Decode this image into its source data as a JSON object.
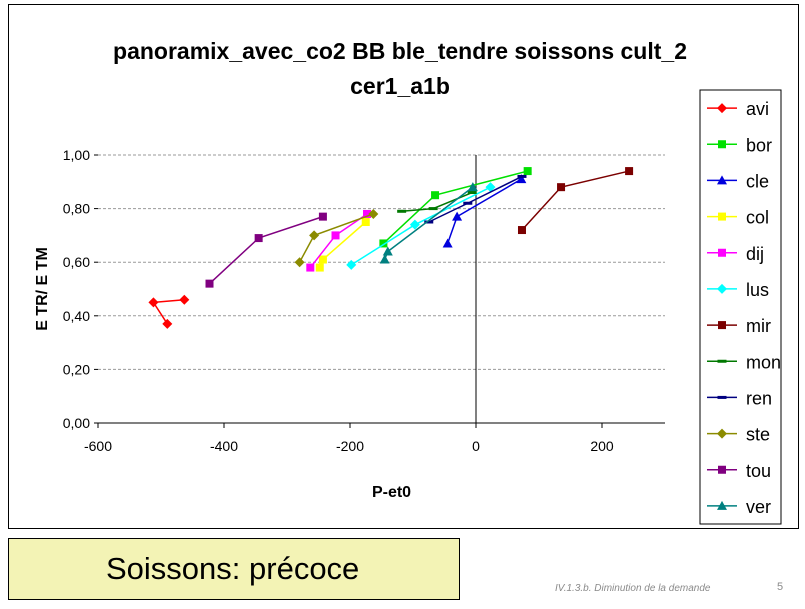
{
  "chart_data": {
    "type": "scatter",
    "title_lines": [
      "panoramix_avec_co2 BB ble_tendre soissons cult_2",
      "cer1_a1b"
    ],
    "xlabel": "P-et0",
    "ylabel": "E TR/ E TM",
    "xlim": [
      -600,
      300
    ],
    "ylim": [
      0,
      1.0
    ],
    "x_ticks": [
      "-600",
      "-400",
      "-200",
      "0",
      "200"
    ],
    "y_ticks": [
      "0,00",
      "0,20",
      "0,40",
      "0,60",
      "0,80",
      "1,00"
    ],
    "grid": "horizontal dashed",
    "legend_position": "right",
    "series": [
      {
        "name": "avi",
        "color": "#ff0000",
        "marker": "diamond",
        "points": [
          [
            -490,
            0.37
          ],
          [
            -512,
            0.45
          ],
          [
            -463,
            0.46
          ]
        ]
      },
      {
        "name": "bor",
        "color": "#00e000",
        "marker": "square",
        "points": [
          [
            -147,
            0.67
          ],
          [
            -65,
            0.85
          ],
          [
            82,
            0.94
          ]
        ]
      },
      {
        "name": "cle",
        "color": "#0000dd",
        "marker": "triangle",
        "points": [
          [
            -45,
            0.67
          ],
          [
            -30,
            0.77
          ],
          [
            72,
            0.91
          ]
        ]
      },
      {
        "name": "col",
        "color": "#ffff00",
        "marker": "square",
        "points": [
          [
            -248,
            0.58
          ],
          [
            -243,
            0.61
          ],
          [
            -175,
            0.75
          ]
        ]
      },
      {
        "name": "dij",
        "color": "#ff00ff",
        "marker": "square",
        "points": [
          [
            -263,
            0.58
          ],
          [
            -223,
            0.7
          ],
          [
            -173,
            0.78
          ]
        ]
      },
      {
        "name": "lus",
        "color": "#00ffff",
        "marker": "diamond",
        "points": [
          [
            -198,
            0.59
          ],
          [
            -97,
            0.74
          ],
          [
            23,
            0.88
          ]
        ]
      },
      {
        "name": "mir",
        "color": "#7b0000",
        "marker": "square",
        "points": [
          [
            73,
            0.72
          ],
          [
            135,
            0.88
          ],
          [
            243,
            0.94
          ]
        ]
      },
      {
        "name": "mon",
        "color": "#007800",
        "marker": "dash",
        "points": [
          [
            -118,
            0.79
          ],
          [
            -68,
            0.8
          ],
          [
            -6,
            0.86
          ]
        ]
      },
      {
        "name": "ren",
        "color": "#000080",
        "marker": "dash",
        "points": [
          [
            -75,
            0.75
          ],
          [
            -13,
            0.82
          ],
          [
            73,
            0.92
          ]
        ]
      },
      {
        "name": "ste",
        "color": "#8b8b00",
        "marker": "diamond",
        "points": [
          [
            -280,
            0.6
          ],
          [
            -257,
            0.7
          ],
          [
            -163,
            0.78
          ]
        ]
      },
      {
        "name": "tou",
        "color": "#800080",
        "marker": "square",
        "points": [
          [
            -423,
            0.52
          ],
          [
            -345,
            0.69
          ],
          [
            -243,
            0.77
          ]
        ]
      },
      {
        "name": "ver",
        "color": "#008080",
        "marker": "triangle",
        "points": [
          [
            -145,
            0.61
          ],
          [
            -140,
            0.64
          ],
          [
            -5,
            0.88
          ]
        ]
      }
    ]
  },
  "caption": "Soissons: précoce",
  "footer": {
    "ref": "IV.1.3.b. Diminution de la demande",
    "page": "5"
  }
}
